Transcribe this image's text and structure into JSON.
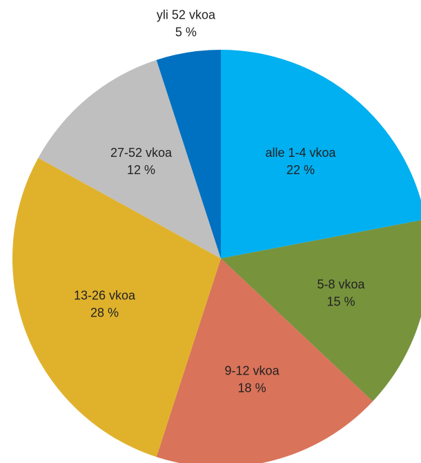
{
  "chart_data": {
    "type": "pie",
    "categories": [
      "alle 1-4 vkoa",
      "5-8 vkoa",
      "9-12 vkoa",
      "13-26 vkoa",
      "27-52 vkoa",
      "yli 52 vkoa"
    ],
    "values": [
      22,
      15,
      18,
      28,
      12,
      5
    ],
    "value_labels": [
      "22 %",
      "15 %",
      "18 %",
      "28 %",
      "12 %",
      "5 %"
    ],
    "colors": [
      "#00b0f0",
      "#77933c",
      "#d9735a",
      "#e0b22c",
      "#bfbfbf",
      "#0070c0"
    ]
  }
}
